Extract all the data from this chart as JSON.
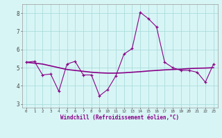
{
  "x": [
    0,
    1,
    2,
    3,
    4,
    5,
    6,
    7,
    8,
    9,
    10,
    11,
    12,
    13,
    14,
    15,
    16,
    17,
    18,
    19,
    20,
    21,
    22,
    23
  ],
  "y_main": [
    5.3,
    5.35,
    4.6,
    4.65,
    3.7,
    5.2,
    5.35,
    4.6,
    4.6,
    3.45,
    3.8,
    4.55,
    5.75,
    6.05,
    8.05,
    7.7,
    7.25,
    5.3,
    5.0,
    4.85,
    4.85,
    4.75,
    4.2,
    5.2
  ],
  "y_trend": [
    5.3,
    5.25,
    5.2,
    5.1,
    5.0,
    4.9,
    4.85,
    4.8,
    4.75,
    4.72,
    4.7,
    4.7,
    4.72,
    4.75,
    4.78,
    4.82,
    4.85,
    4.88,
    4.9,
    4.92,
    4.95,
    4.97,
    4.98,
    5.0
  ],
  "line_color": "#880088",
  "bg_color": "#d8f5f5",
  "grid_color": "#aadddd",
  "xlabel": "Windchill (Refroidissement éolien,°C)",
  "ylim": [
    2.8,
    8.5
  ],
  "xlim": [
    -0.5,
    23.5
  ],
  "yticks": [
    3,
    4,
    5,
    6,
    7,
    8
  ],
  "xticks": [
    0,
    1,
    2,
    3,
    4,
    5,
    6,
    7,
    8,
    9,
    10,
    11,
    12,
    13,
    14,
    15,
    16,
    17,
    18,
    19,
    20,
    21,
    22,
    23
  ]
}
